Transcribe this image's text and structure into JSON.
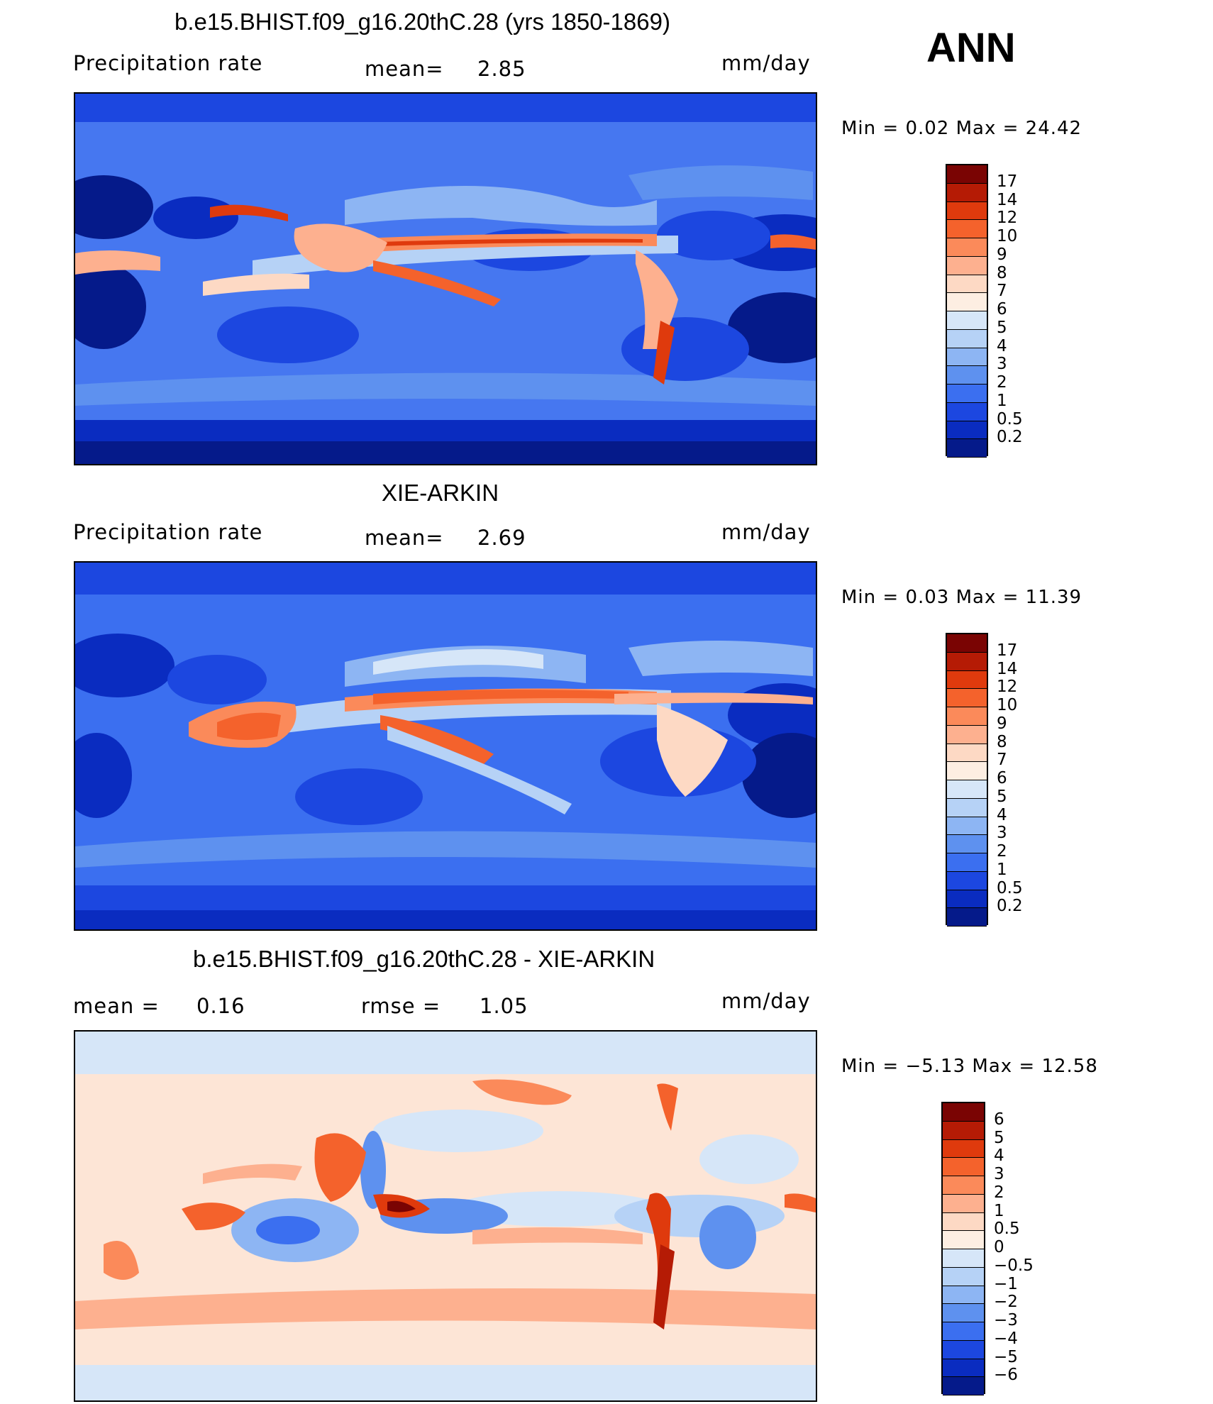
{
  "season": "ANN",
  "panels": [
    {
      "title": "b.e15.BHIST.f09_g16.20thC.28 (yrs 1850-1869)",
      "left_label": "Precipitation  rate",
      "mid_label": "mean=",
      "mid_value": "2.85",
      "units": "mm/day",
      "minmax": "Min  =     0.02  Max  =     24.42",
      "levels": [
        "17",
        "14",
        "12",
        "10",
        "9",
        "8",
        "7",
        "6",
        "5",
        "4",
        "3",
        "2",
        "1",
        "0.5",
        "0.2"
      ],
      "colors": [
        "#7a0403",
        "#b51b05",
        "#df3a0d",
        "#f4622c",
        "#fb8a5a",
        "#fdb08f",
        "#fdd9c4",
        "#fdeee2",
        "#d6e6f8",
        "#b6d2f6",
        "#8db5f3",
        "#5e91ef",
        "#3b6ff0",
        "#1c47e0",
        "#0a2cc0",
        "#051a8a"
      ],
      "ocean_color": "#4677f0"
    },
    {
      "title": "XIE-ARKIN",
      "left_label": "Precipitation  rate",
      "mid_label": "mean=",
      "mid_value": "2.69",
      "units": "mm/day",
      "minmax": "Min  =     0.03  Max  =     11.39",
      "levels": [
        "17",
        "14",
        "12",
        "10",
        "9",
        "8",
        "7",
        "6",
        "5",
        "4",
        "3",
        "2",
        "1",
        "0.5",
        "0.2"
      ],
      "colors": [
        "#7a0403",
        "#b51b05",
        "#df3a0d",
        "#f4622c",
        "#fb8a5a",
        "#fdb08f",
        "#fdd9c4",
        "#fdeee2",
        "#d6e6f8",
        "#b6d2f6",
        "#8db5f3",
        "#5e91ef",
        "#3b6ff0",
        "#1c47e0",
        "#0a2cc0",
        "#051a8a"
      ],
      "ocean_color": "#3b6ff0"
    },
    {
      "title": "b.e15.BHIST.f09_g16.20thC.28 - XIE-ARKIN",
      "left_label": "mean  =",
      "left_value": "0.16",
      "mid_label": "rmse  =",
      "mid_value": "1.05",
      "units": "mm/day",
      "minmax": "Min  =   −5.13  Max  =     12.58",
      "levels": [
        "6",
        "5",
        "4",
        "3",
        "2",
        "1",
        "0.5",
        "0",
        "−0.5",
        "−1",
        "−2",
        "−3",
        "−4",
        "−5",
        "−6"
      ],
      "colors": [
        "#7a0403",
        "#b51b05",
        "#df3a0d",
        "#f4622c",
        "#fb8a5a",
        "#fdb08f",
        "#fdd9c4",
        "#fdeee2",
        "#d6e6f8",
        "#b6d2f6",
        "#8db5f3",
        "#5e91ef",
        "#3b6ff0",
        "#1c47e0",
        "#0a2cc0",
        "#051a8a"
      ],
      "ocean_color": "#fde5d6"
    }
  ]
}
